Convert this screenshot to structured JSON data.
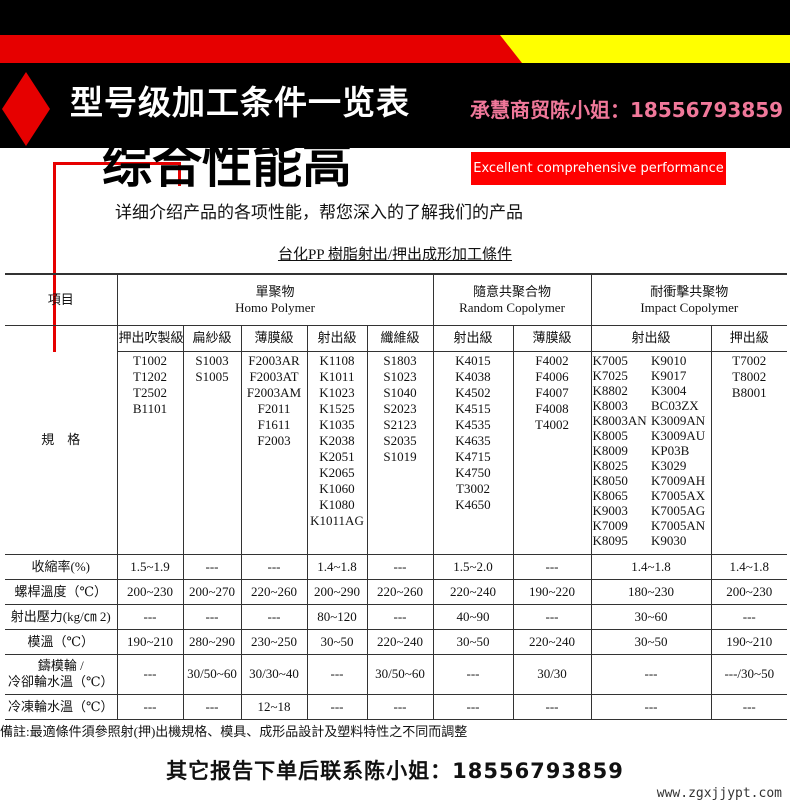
{
  "banner": {
    "title": "型号级加工条件一览表"
  },
  "hero": {
    "title": "综合性能高",
    "tag": "Excellent comprehensive performance",
    "subtitle": "详细介绍产品的各项性能，帮您深入的了解我们的产品"
  },
  "table": {
    "title": "台化PP 樹脂射出/押出成形加工條件",
    "item_header": "項目",
    "groups": [
      {
        "zh": "單聚物",
        "en": "Homo Polymer"
      },
      {
        "zh": "隨意共聚合物",
        "en": "Random Copolymer"
      },
      {
        "zh": "耐衝擊共聚物",
        "en": "Impact Copolymer"
      }
    ],
    "spec_label": "規　格",
    "columns": [
      {
        "name": "押出吹製級",
        "grades": "T1002\nT1202\nT2502\nB1101"
      },
      {
        "name": "扁紗級",
        "grades": "S1003\nS1005"
      },
      {
        "name": "薄膜級",
        "grades": "F2003AR\nF2003AT\nF2003AM\nF2011\nF1611\nF2003"
      },
      {
        "name": "射出級",
        "grades": "K1108\nK1011\nK1023\nK1525\nK1035\nK2038\nK2051\nK2065\nK1060\nK1080\nK1011AG"
      },
      {
        "name": "纖維級",
        "grades": "S1803\nS1023\nS1040\nS2023\nS2123\nS2035\nS1019"
      },
      {
        "name": "射出級",
        "grades": "K4015\nK4038\nK4502\nK4515\nK4535\nK4635\nK4715\nK4750\nT3002\nK4650"
      },
      {
        "name": "薄膜級",
        "grades": "F4002\nF4006\nF4007\nF4008\nT4002"
      },
      {
        "name": "射出級",
        "grades_a": "K7005\nK7025\nK8802\nK8003\nK8003AN\nK8005\nK8009\nK8025\nK8050\nK8065\nK9003\nK7009\nK8095",
        "grades_b": "K9010\nK9017\nK3004\nBC03ZX\nK3009AN\nK3009AU\nKP03B\nK3029\nK7009AH\nK7005AX\nK7005AG\nK7005AN\nK9030"
      },
      {
        "name": "押出級",
        "grades": "T7002\nT8002\nB8001"
      }
    ],
    "rows": [
      {
        "label": "收縮率(%)",
        "values": [
          "1.5~1.9",
          "---",
          "---",
          "1.4~1.8",
          "---",
          "1.5~2.0",
          "---",
          "1.4~1.8",
          "1.4~1.8"
        ]
      },
      {
        "label": "螺桿溫度（℃）",
        "values": [
          "200~230",
          "200~270",
          "220~260",
          "200~290",
          "220~260",
          "220~240",
          "190~220",
          "180~230",
          "200~230"
        ]
      },
      {
        "label": "射出壓力(kg/㎝ 2)",
        "values": [
          "---",
          "---",
          "---",
          "80~120",
          "---",
          "40~90",
          "---",
          "30~60",
          "---"
        ]
      },
      {
        "label": "模溫（℃）",
        "values": [
          "190~210",
          "280~290",
          "230~250",
          "30~50",
          "220~240",
          "30~50",
          "220~240",
          "30~50",
          "190~210"
        ]
      },
      {
        "label": "鑄模輪 /\n冷卻輪水溫（℃）",
        "values": [
          "---",
          "30/50~60",
          "30/30~40",
          "---",
          "30/50~60",
          "---",
          "30/30",
          "---",
          "---/30~50"
        ]
      },
      {
        "label": "冷凍輪水溫（℃）",
        "values": [
          "---",
          "---",
          "12~18",
          "---",
          "---",
          "---",
          "---",
          "---",
          "---"
        ]
      }
    ],
    "note": "備註:最適條件須參照射(押)出機規格、模具、成形品設計及塑料特性之不同而調整"
  },
  "watermark": "承慧商贸陈小姐：18556793859",
  "footer": "其它报告下单后联系陈小姐：18556793859",
  "site": "www.zgxjjypt.com",
  "colors": {
    "red": "#e60000",
    "yellow": "#ffff00",
    "black": "#000000"
  }
}
